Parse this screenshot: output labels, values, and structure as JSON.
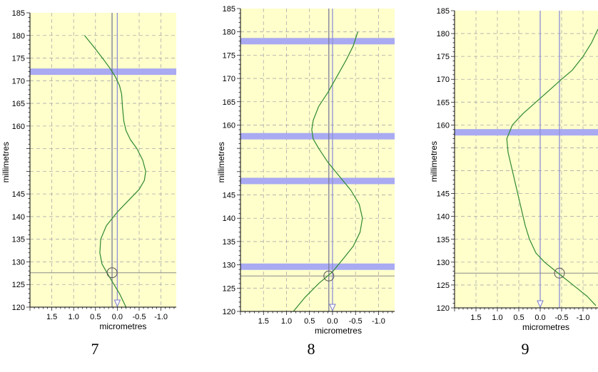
{
  "chart_data": [
    {
      "type": "line",
      "caption": "7",
      "xlabel": "micrometres",
      "ylabel": "millimetres",
      "xlim": [
        2.0,
        -1.35
      ],
      "ylim": [
        120,
        185
      ],
      "x_ticks": [
        1.5,
        1.0,
        0.5,
        0.0,
        -0.5,
        -1.0
      ],
      "x_tick_labels": [
        "1.5",
        "1.0",
        "0.5",
        "0.0",
        "-0.5",
        "-1.0"
      ],
      "y_ticks": [
        120,
        125,
        130,
        135,
        140,
        145,
        150,
        155,
        160,
        165,
        170,
        175,
        180,
        185
      ],
      "y_tick_labels": [
        "120",
        "125",
        "130",
        "135",
        "140",
        "145",
        "",
        "",
        "160",
        "165",
        "170",
        "175",
        "180",
        "185"
      ],
      "grid": true,
      "curve": {
        "x": [
          0.75,
          0.5,
          0.3,
          0.15,
          0.05,
          -0.05,
          -0.1,
          -0.12,
          -0.15,
          -0.2,
          -0.3,
          -0.45,
          -0.58,
          -0.65,
          -0.62,
          -0.5,
          -0.35,
          0.0,
          0.25,
          0.38,
          0.4,
          0.35,
          0.2,
          -0.05,
          -0.2
        ],
        "y": [
          180,
          177,
          174.5,
          172.5,
          171,
          169,
          167,
          164,
          161,
          159,
          157,
          155,
          152.5,
          150,
          148,
          146,
          144.5,
          141,
          138,
          135,
          132,
          129.5,
          127,
          123,
          120
        ]
      },
      "bands": [
        172
      ],
      "vertical_lines": [
        0.12,
        0.0
      ],
      "horizontal_lines": [
        127.6
      ],
      "circle": {
        "x": 0.12,
        "y": 127.6
      },
      "arrow_at_x": 0.0
    },
    {
      "type": "line",
      "caption": "8",
      "xlabel": "micrometres",
      "ylabel": "millimetres",
      "xlim": [
        2.0,
        -1.35
      ],
      "ylim": [
        120,
        185
      ],
      "x_ticks": [
        1.5,
        1.0,
        0.5,
        0.0,
        -0.5,
        -1.0
      ],
      "x_tick_labels": [
        "1.5",
        "1.0",
        "0.5",
        "0.0",
        "-0.5",
        "-1.0"
      ],
      "y_ticks": [
        120,
        125,
        130,
        135,
        140,
        145,
        150,
        155,
        160,
        165,
        170,
        175,
        180,
        185
      ],
      "y_tick_labels": [
        "120",
        "125",
        "130",
        "135",
        "140",
        "145",
        "",
        "",
        "160",
        "165",
        "170",
        "175",
        "180",
        "185"
      ],
      "grid": true,
      "curve": {
        "x": [
          -0.55,
          -0.45,
          -0.3,
          -0.1,
          0.1,
          0.3,
          0.42,
          0.45,
          0.42,
          0.3,
          0.1,
          -0.15,
          -0.4,
          -0.58,
          -0.65,
          -0.6,
          -0.45,
          -0.25,
          0.0,
          0.3,
          0.6,
          0.85
        ],
        "y": [
          180,
          177,
          174,
          170.5,
          167,
          164,
          161,
          159,
          157,
          155,
          152,
          149,
          146,
          143,
          140,
          137,
          134,
          131.5,
          128.5,
          126,
          123,
          120
        ]
      },
      "bands": [
        178,
        157.6,
        148,
        129.6
      ],
      "vertical_lines": [
        0.08,
        0.0
      ],
      "horizontal_lines": [
        127.6
      ],
      "circle": {
        "x": 0.08,
        "y": 127.6
      },
      "arrow_at_x": 0.0
    },
    {
      "type": "line",
      "caption": "9",
      "xlabel": "micrometres",
      "ylabel": "millimetres",
      "xlim": [
        2.0,
        -1.35
      ],
      "ylim": [
        120,
        185
      ],
      "x_ticks": [
        1.5,
        1.0,
        0.5,
        0.0,
        -0.5,
        -1.0
      ],
      "x_tick_labels": [
        "1.5",
        "1.0",
        "0.5",
        "0.0",
        "-0.5",
        "-1.0"
      ],
      "y_ticks": [
        120,
        125,
        130,
        135,
        140,
        145,
        150,
        155,
        160,
        165,
        170,
        175,
        180,
        185
      ],
      "y_tick_labels": [
        "120",
        "125",
        "130",
        "135",
        "140",
        "145",
        "",
        "",
        "160",
        "165",
        "170",
        "175",
        "180",
        "185"
      ],
      "grid": true,
      "curve": {
        "x": [
          -1.35,
          -1.2,
          -1.0,
          -0.75,
          -0.5,
          -0.2,
          0.1,
          0.4,
          0.65,
          0.78,
          0.75,
          0.65,
          0.55,
          0.45,
          0.35,
          0.25,
          0.1,
          -0.1,
          -0.3,
          -0.5,
          -0.7,
          -0.9,
          -1.1,
          -1.3
        ],
        "y": [
          181,
          178,
          175,
          172,
          170,
          167.5,
          165,
          162.5,
          160,
          157,
          154,
          150,
          146,
          142,
          138,
          135,
          132,
          130,
          128.5,
          127,
          125.5,
          124,
          122.5,
          120.5
        ]
      },
      "bands": [
        158.4
      ],
      "vertical_lines": [
        0.0,
        -0.45
      ],
      "horizontal_lines": [
        127.6
      ],
      "circle": {
        "x": -0.45,
        "y": 127.6
      },
      "arrow_at_x": 0.0
    }
  ]
}
